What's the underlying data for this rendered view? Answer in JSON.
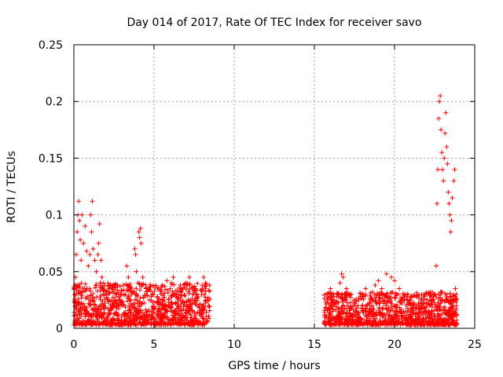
{
  "chart_data": {
    "type": "scatter",
    "title": "Day 014 of 2017, Rate Of TEC Index for receiver savo",
    "xlabel": "GPS time / hours",
    "ylabel": "ROTI / TECUs",
    "xlim": [
      0,
      25
    ],
    "ylim": [
      0,
      0.25
    ],
    "xticks": [
      "0",
      "5",
      "10",
      "15",
      "20",
      "25"
    ],
    "xtick_values": [
      0,
      5,
      10,
      15,
      20,
      25
    ],
    "yticks": [
      "0",
      "0.05",
      "0.1",
      "0.15",
      "0.2",
      "0.25"
    ],
    "ytick_values": [
      0,
      0.05,
      0.1,
      0.15,
      0.2,
      0.25
    ],
    "grid": true,
    "marker": "plus",
    "color": "#ff0000",
    "points": [
      [
        0.05,
        0.03
      ],
      [
        0.1,
        0.045
      ],
      [
        0.15,
        0.065
      ],
      [
        0.2,
        0.085
      ],
      [
        0.25,
        0.1
      ],
      [
        0.3,
        0.112
      ],
      [
        0.35,
        0.095
      ],
      [
        0.4,
        0.078
      ],
      [
        0.45,
        0.06
      ],
      [
        0.5,
        0.1
      ],
      [
        0.6,
        0.075
      ],
      [
        0.7,
        0.09
      ],
      [
        0.8,
        0.068
      ],
      [
        0.9,
        0.055
      ],
      [
        1.0,
        0.065
      ],
      [
        1.05,
        0.1
      ],
      [
        1.1,
        0.085
      ],
      [
        1.15,
        0.112
      ],
      [
        1.2,
        0.07
      ],
      [
        1.3,
        0.06
      ],
      [
        1.4,
        0.05
      ],
      [
        1.5,
        0.065
      ],
      [
        1.55,
        0.075
      ],
      [
        1.6,
        0.092
      ],
      [
        1.7,
        0.06
      ],
      [
        1.75,
        0.045
      ],
      [
        1.8,
        0.035
      ],
      [
        1.85,
        0.04
      ],
      [
        2.0,
        0.03
      ],
      [
        2.2,
        0.025
      ],
      [
        2.5,
        0.022
      ],
      [
        2.8,
        0.028
      ],
      [
        3.0,
        0.033
      ],
      [
        3.2,
        0.03
      ],
      [
        3.3,
        0.055
      ],
      [
        3.4,
        0.045
      ],
      [
        3.5,
        0.025
      ],
      [
        3.6,
        0.02
      ],
      [
        3.7,
        0.032
      ],
      [
        3.8,
        0.07
      ],
      [
        3.85,
        0.065
      ],
      [
        3.9,
        0.05
      ],
      [
        4.0,
        0.04
      ],
      [
        4.05,
        0.085
      ],
      [
        4.1,
        0.08
      ],
      [
        4.15,
        0.088
      ],
      [
        4.2,
        0.075
      ],
      [
        4.3,
        0.045
      ],
      [
        4.5,
        0.035
      ],
      [
        4.7,
        0.025
      ],
      [
        4.9,
        0.03
      ],
      [
        5.2,
        0.028
      ],
      [
        5.5,
        0.038
      ],
      [
        5.8,
        0.042
      ],
      [
        6.0,
        0.035
      ],
      [
        6.2,
        0.045
      ],
      [
        6.4,
        0.03
      ],
      [
        6.7,
        0.032
      ],
      [
        7.0,
        0.04
      ],
      [
        7.2,
        0.045
      ],
      [
        7.4,
        0.035
      ],
      [
        7.7,
        0.03
      ],
      [
        8.0,
        0.038
      ],
      [
        8.1,
        0.045
      ],
      [
        8.2,
        0.04
      ],
      [
        8.3,
        0.025
      ],
      [
        8.4,
        0.02
      ],
      [
        15.8,
        0.025
      ],
      [
        16.0,
        0.035
      ],
      [
        16.2,
        0.03
      ],
      [
        16.4,
        0.028
      ],
      [
        16.6,
        0.04
      ],
      [
        16.7,
        0.048
      ],
      [
        16.8,
        0.045
      ],
      [
        17.0,
        0.035
      ],
      [
        17.3,
        0.03
      ],
      [
        17.6,
        0.025
      ],
      [
        17.9,
        0.028
      ],
      [
        18.2,
        0.035
      ],
      [
        18.5,
        0.025
      ],
      [
        18.8,
        0.038
      ],
      [
        19.0,
        0.042
      ],
      [
        19.2,
        0.035
      ],
      [
        19.5,
        0.048
      ],
      [
        19.8,
        0.045
      ],
      [
        20.0,
        0.042
      ],
      [
        20.3,
        0.035
      ],
      [
        20.6,
        0.025
      ],
      [
        21.0,
        0.022
      ],
      [
        21.4,
        0.02
      ],
      [
        21.8,
        0.022
      ],
      [
        22.2,
        0.025
      ],
      [
        22.5,
        0.03
      ],
      [
        22.6,
        0.055
      ],
      [
        22.65,
        0.11
      ],
      [
        22.7,
        0.14
      ],
      [
        22.75,
        0.185
      ],
      [
        22.8,
        0.2
      ],
      [
        22.85,
        0.205
      ],
      [
        22.9,
        0.175
      ],
      [
        22.95,
        0.155
      ],
      [
        23.0,
        0.14
      ],
      [
        23.05,
        0.13
      ],
      [
        23.1,
        0.15
      ],
      [
        23.15,
        0.172
      ],
      [
        23.2,
        0.19
      ],
      [
        23.25,
        0.16
      ],
      [
        23.3,
        0.145
      ],
      [
        23.35,
        0.12
      ],
      [
        23.4,
        0.11
      ],
      [
        23.45,
        0.1
      ],
      [
        23.5,
        0.085
      ],
      [
        23.55,
        0.095
      ],
      [
        23.6,
        0.115
      ],
      [
        23.7,
        0.13
      ],
      [
        23.75,
        0.14
      ],
      [
        23.8,
        0.035
      ],
      [
        23.85,
        0.03
      ]
    ],
    "bands": [
      {
        "x": [
          0.0,
          8.5
        ],
        "y": [
          0.003,
          0.04
        ]
      },
      {
        "x": [
          15.6,
          23.9
        ],
        "y": [
          0.003,
          0.032
        ]
      }
    ],
    "band_count": 1100,
    "seed": 14
  }
}
